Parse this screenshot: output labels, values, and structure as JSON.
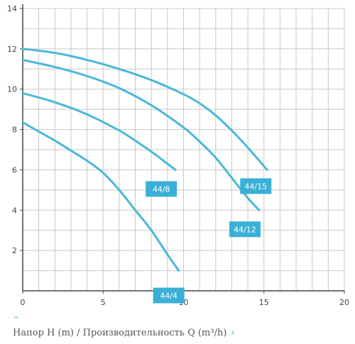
{
  "chart_data": {
    "type": "line",
    "title": "",
    "xlabel": "",
    "ylabel": "",
    "xlim": [
      0,
      20
    ],
    "ylim": [
      0,
      14
    ],
    "x_ticks": [
      0,
      5,
      10,
      15,
      20
    ],
    "y_ticks": [
      2,
      4,
      6,
      8,
      10,
      12,
      14
    ],
    "grid": true,
    "line_color": "#4bb8d8",
    "label_bg_color": "#3ab0d6",
    "label_text_color": "#ffffff",
    "axis_color": "#444444",
    "grid_color": "#c8c8c8",
    "series": [
      {
        "name": "44/4",
        "x": [
          0,
          1,
          2,
          3,
          4,
          5,
          6,
          7,
          8,
          9,
          9.7
        ],
        "y": [
          8.35,
          7.9,
          7.45,
          6.95,
          6.45,
          5.85,
          5.0,
          4.0,
          3.0,
          1.8,
          1.0
        ]
      },
      {
        "name": "44/8",
        "x": [
          0,
          2,
          4,
          6,
          7,
          8,
          9,
          9.5
        ],
        "y": [
          9.8,
          9.35,
          8.75,
          7.95,
          7.45,
          6.9,
          6.3,
          6.0
        ]
      },
      {
        "name": "44/12",
        "x": [
          0,
          2,
          4,
          6,
          8,
          10,
          11,
          12,
          13,
          14,
          14.7
        ],
        "y": [
          11.45,
          11.1,
          10.65,
          10.05,
          9.2,
          8.1,
          7.4,
          6.6,
          5.6,
          4.6,
          4.0
        ]
      },
      {
        "name": "44/15",
        "x": [
          0,
          2,
          4,
          6,
          8,
          10,
          11,
          12,
          13,
          14,
          15.2
        ],
        "y": [
          12.0,
          11.8,
          11.45,
          11.0,
          10.45,
          9.75,
          9.3,
          8.7,
          7.95,
          7.1,
          6.0
        ]
      }
    ]
  },
  "caption": {
    "caret": "^",
    "text": "Напор H (m) / Производительность Q (m³/h)",
    "chevron": "›"
  }
}
